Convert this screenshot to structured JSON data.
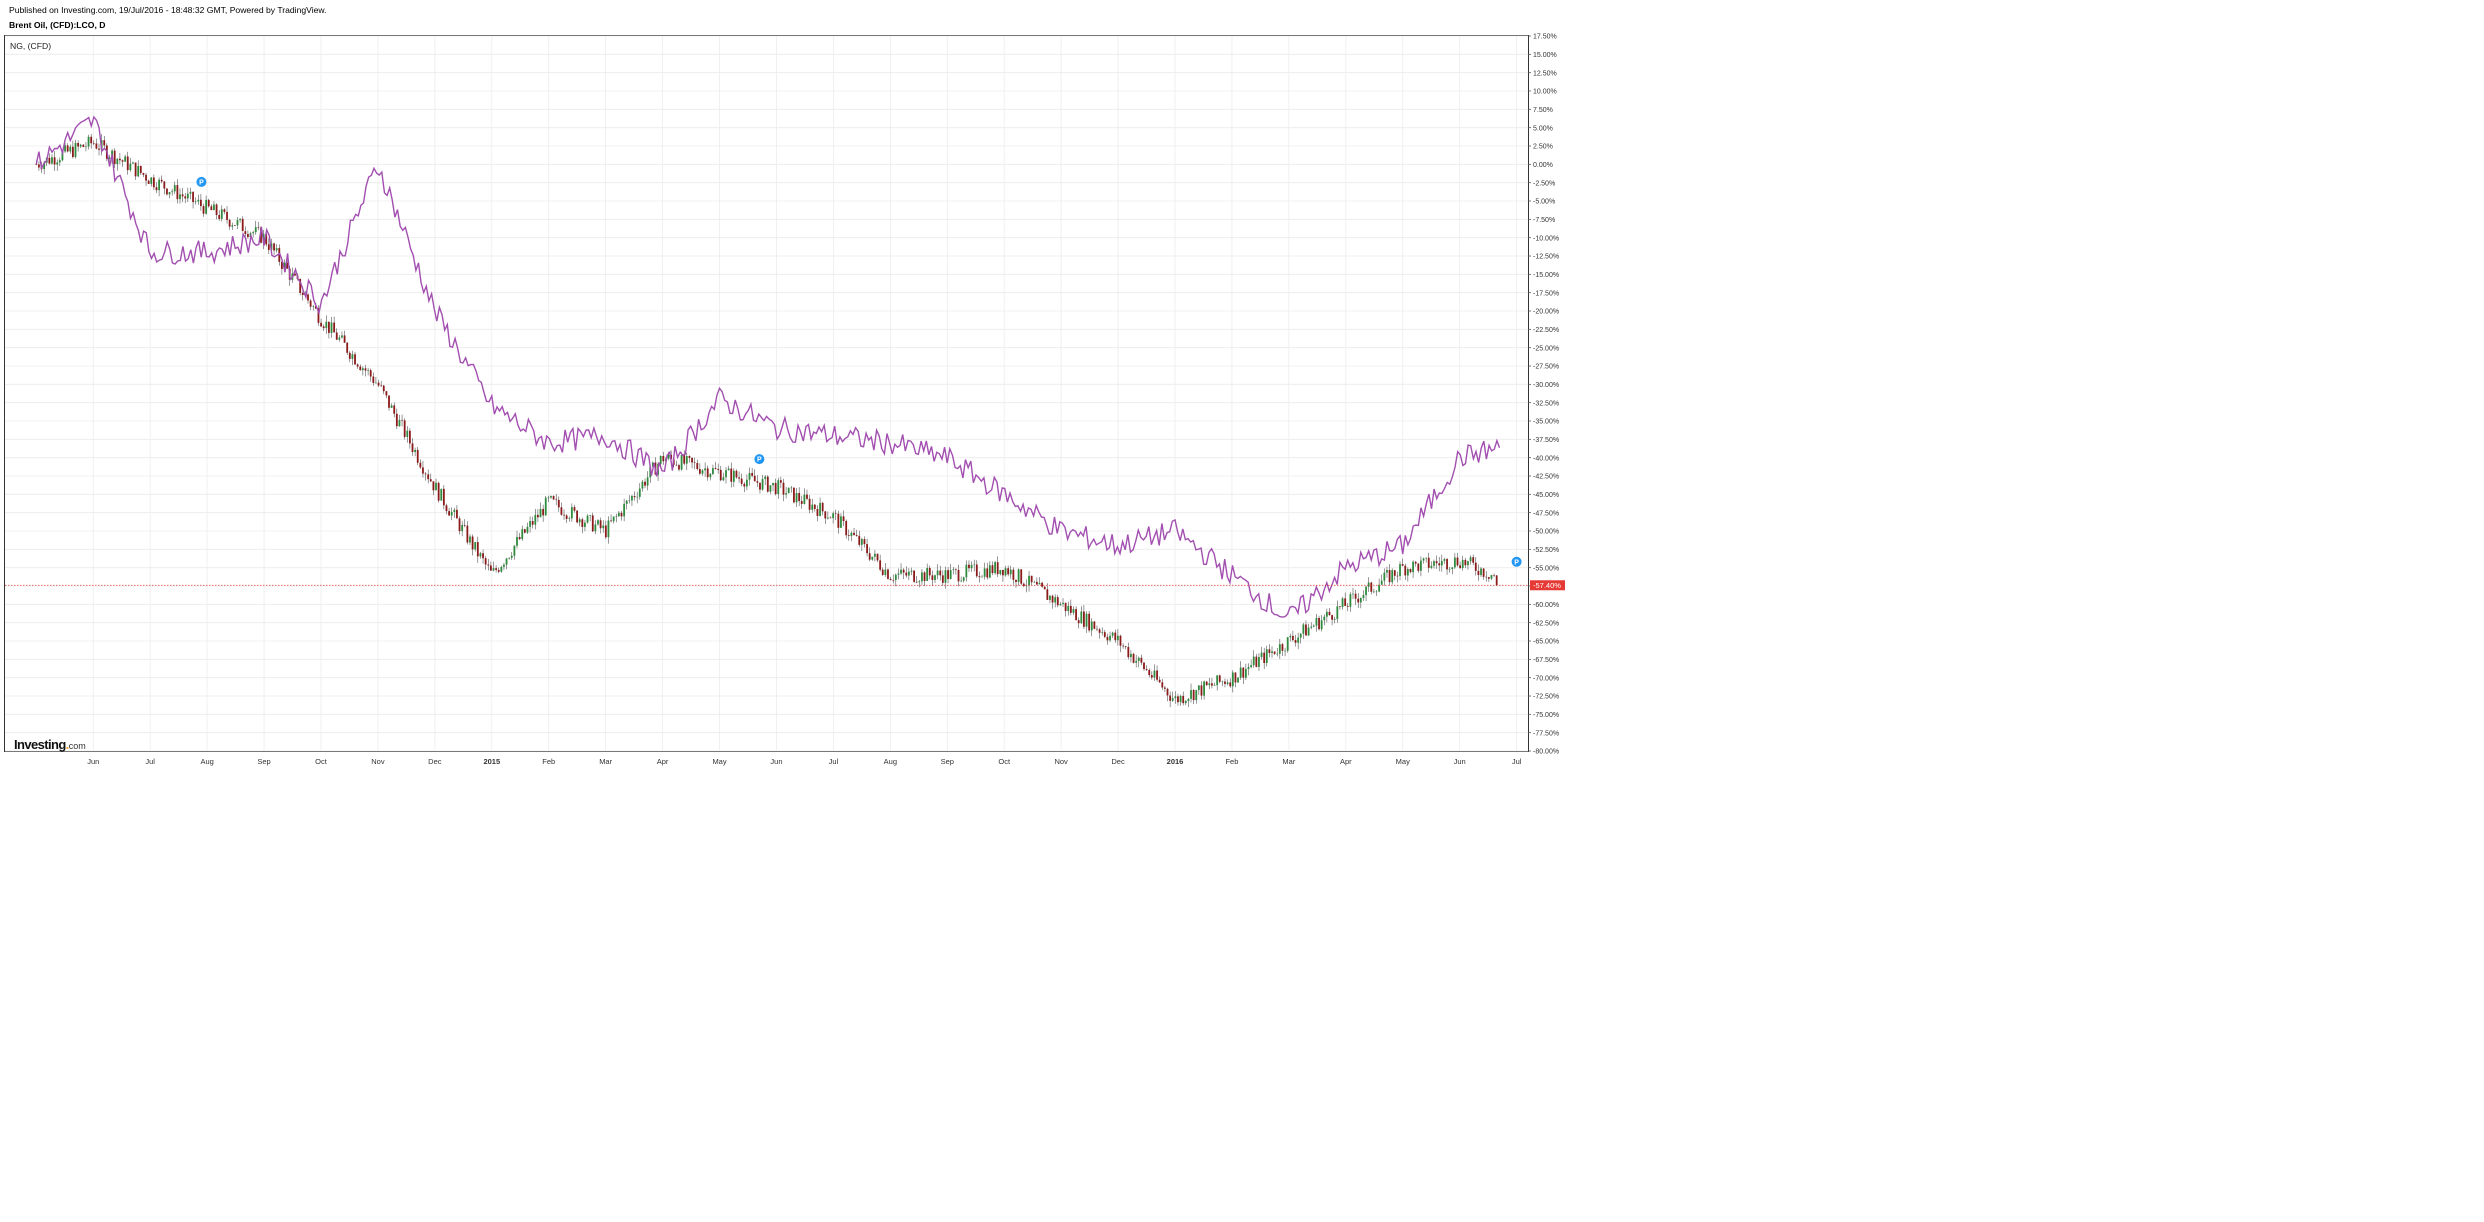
{
  "header": {
    "published": "Published on Investing.com, 19/Jul/2016 - 18:48:32 GMT, Powered by TradingView.",
    "symbol_line": "Brent Oil, (CFD):LCO, D"
  },
  "legend": {
    "compare_label": "NG,  (CFD)"
  },
  "logo": {
    "main": "Investing",
    "dot": ".",
    "suffix": "com"
  },
  "chart_data": {
    "type": "line",
    "title": "Brent Oil, (CFD):LCO, D",
    "y_unit": "percent change",
    "ylim": [
      -80,
      17.5
    ],
    "y_ticks": [
      "17.50%",
      "15.00%",
      "12.50%",
      "10.00%",
      "7.50%",
      "5.00%",
      "2.50%",
      "0.00%",
      "-2.50%",
      "-5.00%",
      "-7.50%",
      "-10.00%",
      "-12.50%",
      "-15.00%",
      "-17.50%",
      "-20.00%",
      "-22.50%",
      "-25.00%",
      "-27.50%",
      "-30.00%",
      "-32.50%",
      "-35.00%",
      "-37.50%",
      "-40.00%",
      "-42.50%",
      "-45.00%",
      "-47.50%",
      "-50.00%",
      "-52.50%",
      "-55.00%",
      "-57.50%",
      "-60.00%",
      "-62.50%",
      "-65.00%",
      "-67.50%",
      "-70.00%",
      "-72.50%",
      "-75.00%",
      "-77.50%",
      "-80.00%"
    ],
    "x_ticks": [
      "Jun",
      "Jul",
      "Aug",
      "Sep",
      "Oct",
      "Nov",
      "Dec",
      "2015",
      "Feb",
      "Mar",
      "Apr",
      "May",
      "Jun",
      "Jul",
      "Aug",
      "Sep",
      "Oct",
      "Nov",
      "Dec",
      "2016",
      "Feb",
      "Mar",
      "Apr",
      "May",
      "Jun",
      "Jul"
    ],
    "bold_x_ticks": [
      "2015",
      "2016"
    ],
    "current_value_label": "-57.40%",
    "current_value": -57.4,
    "grid": true,
    "colors": {
      "up": "#2e8b3e",
      "down": "#8b1a1a",
      "compare": "#a24fb0",
      "current_line": "#e53935",
      "marker": "#2196f3"
    },
    "markers": [
      {
        "label": "P",
        "month": "Aug 2014"
      },
      {
        "label": "P",
        "month": "May 2015"
      },
      {
        "label": "P",
        "month": "Jul 2016"
      }
    ],
    "series": [
      {
        "name": "Brent Oil, (CFD):LCO",
        "style": "candles",
        "months": [
          "May 2014",
          "Jun 2014",
          "Jul 2014",
          "Aug 2014",
          "Sep 2014",
          "Oct 2014",
          "Nov 2014",
          "Dec 2014",
          "Jan 2015",
          "Feb 2015",
          "Mar 2015",
          "Apr 2015",
          "May 2015",
          "Jun 2015",
          "Jul 2015",
          "Aug 2015",
          "Sep 2015",
          "Oct 2015",
          "Nov 2015",
          "Dec 2015",
          "Jan 2016",
          "Feb 2016",
          "Mar 2016",
          "Apr 2016",
          "May 2016",
          "Jun 2016",
          "Jul 2016"
        ],
        "values": [
          0,
          3,
          -2,
          -6,
          -10,
          -21,
          -30,
          -44,
          -56,
          -46,
          -50,
          -40,
          -42,
          -44,
          -48,
          -56,
          -56,
          -55,
          -60,
          -65,
          -73,
          -70,
          -65,
          -60,
          -55,
          -54,
          -57.4
        ]
      },
      {
        "name": "NG,  (CFD)",
        "style": "line",
        "months": [
          "May 2014",
          "Jun 2014",
          "Jul 2014",
          "Aug 2014",
          "Sep 2014",
          "Oct 2014",
          "Nov 2014",
          "Dec 2014",
          "Jan 2015",
          "Feb 2015",
          "Mar 2015",
          "Apr 2015",
          "May 2015",
          "Jun 2015",
          "Jul 2015",
          "Aug 2015",
          "Sep 2015",
          "Oct 2015",
          "Nov 2015",
          "Dec 2015",
          "Jan 2016",
          "Feb 2016",
          "Mar 2016",
          "Apr 2016",
          "May 2016",
          "Jun 2016",
          "Jul 2016"
        ],
        "values": [
          0,
          6,
          -12,
          -12,
          -10,
          -19,
          0,
          -20,
          -33,
          -38,
          -37,
          -42,
          -32,
          -36,
          -37,
          -38,
          -40,
          -45,
          -50,
          -52,
          -50,
          -56,
          -62,
          -55,
          -52,
          -40,
          -38
        ]
      }
    ]
  }
}
